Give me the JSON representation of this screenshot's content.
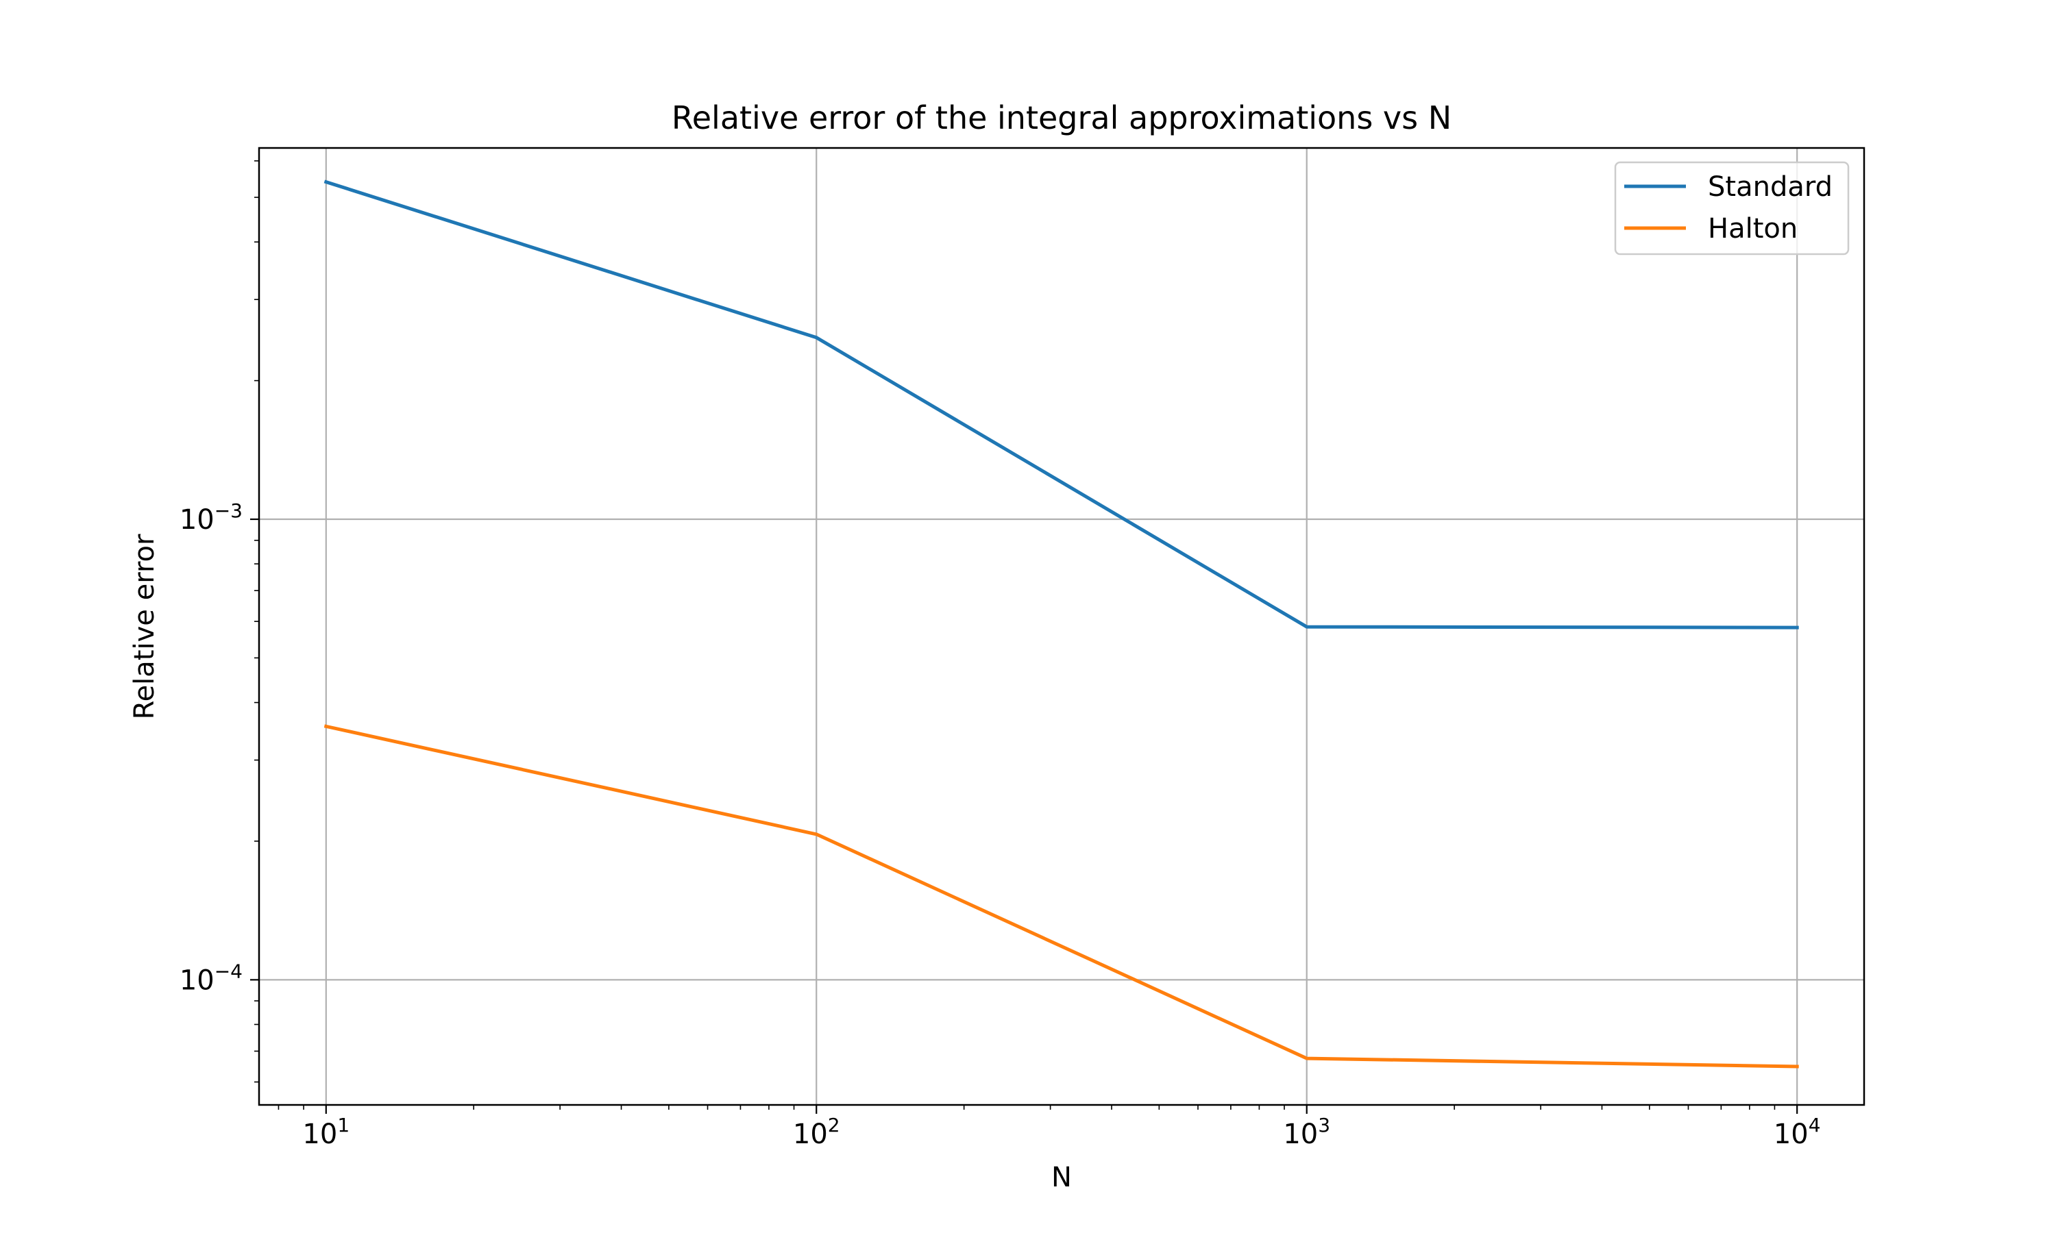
{
  "chart_data": {
    "type": "line",
    "title": "Relative error of the integral approximations vs N",
    "xlabel": "N",
    "ylabel": "Relative error",
    "xscale": "log",
    "yscale": "log",
    "xlim": [
      7.3,
      13700
    ],
    "ylim": [
      5.35e-05,
      0.0064
    ],
    "x": [
      10,
      100,
      1000,
      10000
    ],
    "x_ticks": [
      {
        "value": 10,
        "base": "10",
        "exp": "1"
      },
      {
        "value": 100,
        "base": "10",
        "exp": "2"
      },
      {
        "value": 1000,
        "base": "10",
        "exp": "3"
      },
      {
        "value": 10000,
        "base": "10",
        "exp": "4"
      }
    ],
    "y_ticks": [
      {
        "value": 0.001,
        "base": "10",
        "exp": "−3"
      },
      {
        "value": 0.0001,
        "base": "10",
        "exp": "−4"
      }
    ],
    "series": [
      {
        "name": "Standard",
        "color": "#1f77b4",
        "values": [
          0.0054,
          0.00248,
          0.000584,
          0.000582
        ]
      },
      {
        "name": "Halton",
        "color": "#ff7f0e",
        "values": [
          0.000355,
          0.000207,
          6.75e-05,
          6.48e-05
        ]
      }
    ],
    "grid": true,
    "legend_position": "top-right",
    "grid_color": "#b0b0b0"
  }
}
